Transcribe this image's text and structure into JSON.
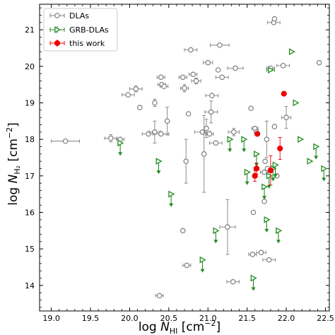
{
  "chart_data": {
    "type": "scatter",
    "xlabel": {
      "base": "log ",
      "italic": "N",
      "sub": "HI",
      "unit": " [cm",
      "sup": "−2",
      "close": "]"
    },
    "ylabel": {
      "base": "log ",
      "italic": "N",
      "sub": "H₂",
      "unit": " [cm",
      "sup": "−2",
      "close": "]"
    },
    "xlim": [
      18.85,
      22.55
    ],
    "ylim": [
      13.3,
      21.7
    ],
    "xticks": [
      "19.0",
      "19.5",
      "20.0",
      "20.5",
      "21.0",
      "21.5",
      "22.0",
      "22.5"
    ],
    "yticks": [
      "14",
      "15",
      "16",
      "17",
      "18",
      "19",
      "20",
      "21"
    ],
    "grid": false,
    "legend": {
      "placement": "top-left",
      "entries": [
        "DLAs",
        "GRB-DLAs",
        "this work"
      ]
    },
    "colors": {
      "dlas": "#7f7f7f",
      "grb": "#228b22",
      "this_work": "#ee0000"
    },
    "series": [
      {
        "name": "DLAs",
        "marker": "open-circle",
        "points": [
          {
            "x": 19.18,
            "y": 17.95,
            "xerr": 0.18
          },
          {
            "x": 19.76,
            "y": 18.03,
            "xerr": 0.08,
            "yerr": 0.1
          },
          {
            "x": 19.88,
            "y": 18.0,
            "xerr": 0.05
          },
          {
            "x": 19.98,
            "y": 19.22,
            "xerr": 0.08
          },
          {
            "x": 20.08,
            "y": 19.38,
            "xerr": 0.08,
            "yerr": 0.08
          },
          {
            "x": 20.13,
            "y": 18.87
          },
          {
            "x": 20.24,
            "y": 18.15,
            "xerr": 0.08
          },
          {
            "x": 20.32,
            "y": 18.2,
            "xerr": 0.07,
            "yerr": 0.3
          },
          {
            "x": 20.32,
            "y": 19.0,
            "yerr": 0.1
          },
          {
            "x": 20.38,
            "y": 13.72,
            "xerr": 0.05
          },
          {
            "x": 20.4,
            "y": 18.15,
            "xerr": 0.1
          },
          {
            "x": 20.4,
            "y": 19.7,
            "xerr": 0.05
          },
          {
            "x": 20.41,
            "y": 19.5,
            "xerr": 0.05
          },
          {
            "x": 20.44,
            "y": 19.45,
            "xerr": 0.05
          },
          {
            "x": 20.48,
            "y": 18.5,
            "yerr": 0.38
          },
          {
            "x": 20.68,
            "y": 15.5
          },
          {
            "x": 20.68,
            "y": 19.7,
            "xerr": 0.05
          },
          {
            "x": 20.7,
            "y": 19.4,
            "xerr": 0.05,
            "yerr": 0.1
          },
          {
            "x": 20.72,
            "y": 17.4,
            "yerr": 0.6
          },
          {
            "x": 20.73,
            "y": 14.55,
            "xerr": 0.05
          },
          {
            "x": 20.75,
            "y": 18.7
          },
          {
            "x": 20.78,
            "y": 20.45,
            "xerr": 0.08
          },
          {
            "x": 20.81,
            "y": 19.78,
            "xerr": 0.05
          },
          {
            "x": 20.85,
            "y": 19.6,
            "xerr": 0.06,
            "yerr": 0.08
          },
          {
            "x": 20.93,
            "y": 18.2,
            "xerr": 0.1
          },
          {
            "x": 20.95,
            "y": 17.6,
            "yerr": 1.05
          },
          {
            "x": 20.98,
            "y": 18.3,
            "yerr": 0.25
          },
          {
            "x": 21.0,
            "y": 20.1,
            "xerr": 0.06
          },
          {
            "x": 21.02,
            "y": 18.15,
            "xerr": 0.05
          },
          {
            "x": 21.04,
            "y": 18.75,
            "xerr": 0.08,
            "yerr": 0.3
          },
          {
            "x": 21.05,
            "y": 19.2,
            "xerr": 0.08
          },
          {
            "x": 21.1,
            "y": 17.9,
            "xerr": 0.08
          },
          {
            "x": 21.13,
            "y": 19.9
          },
          {
            "x": 21.15,
            "y": 20.58,
            "xerr": 0.12
          },
          {
            "x": 21.18,
            "y": 19.7,
            "xerr": 0.08
          },
          {
            "x": 21.25,
            "y": 15.6,
            "xerr": 0.1,
            "yerr": 0.75
          },
          {
            "x": 21.32,
            "y": 14.1,
            "xerr": 0.08
          },
          {
            "x": 21.33,
            "y": 18.2,
            "xerr": 0.07,
            "yerr": 0.1
          },
          {
            "x": 21.35,
            "y": 19.95,
            "xerr": 0.1
          },
          {
            "x": 21.55,
            "y": 18.85
          },
          {
            "x": 21.57,
            "y": 14.85,
            "xerr": 0.05
          },
          {
            "x": 21.58,
            "y": 16.0
          },
          {
            "x": 21.6,
            "y": 18.3,
            "xerr": 0.04
          },
          {
            "x": 21.62,
            "y": 18.2
          },
          {
            "x": 21.68,
            "y": 14.9,
            "xerr": 0.06
          },
          {
            "x": 21.72,
            "y": 16.3
          },
          {
            "x": 21.72,
            "y": 17.1,
            "xerr": 0.05
          },
          {
            "x": 21.73,
            "y": 17.4
          },
          {
            "x": 21.75,
            "y": 18.0,
            "yerr": 0.5
          },
          {
            "x": 21.76,
            "y": 17.2
          },
          {
            "x": 21.78,
            "y": 14.7,
            "xerr": 0.08
          },
          {
            "x": 21.8,
            "y": 17.15
          },
          {
            "x": 21.8,
            "y": 19.95,
            "xerr": 0.05
          },
          {
            "x": 21.84,
            "y": 21.2,
            "xerr": 0.08
          },
          {
            "x": 21.85,
            "y": 21.3
          },
          {
            "x": 21.85,
            "y": 18.35
          },
          {
            "x": 21.88,
            "y": 17.0
          },
          {
            "x": 21.96,
            "y": 20.02,
            "xerr": 0.08
          },
          {
            "x": 22.0,
            "y": 18.6,
            "xerr": 0.06,
            "yerr": 0.3
          },
          {
            "x": 22.42,
            "y": 20.1
          }
        ]
      },
      {
        "name": "GRB-DLAs",
        "marker": "open-triangle-right",
        "points": [
          {
            "x": 19.88,
            "y": 17.9,
            "upper": true
          },
          {
            "x": 20.37,
            "y": 17.4,
            "upper": true
          },
          {
            "x": 20.53,
            "y": 16.5,
            "upper": true
          },
          {
            "x": 20.93,
            "y": 14.7,
            "upper": true
          },
          {
            "x": 21.1,
            "y": 15.5,
            "upper": true
          },
          {
            "x": 21.28,
            "y": 18.0,
            "upper": true
          },
          {
            "x": 21.46,
            "y": 18.0,
            "upper": true
          },
          {
            "x": 21.5,
            "y": 17.1,
            "upper": true
          },
          {
            "x": 21.58,
            "y": 14.2,
            "upper": true
          },
          {
            "x": 21.62,
            "y": 17.6,
            "upper": true
          },
          {
            "x": 21.72,
            "y": 16.7,
            "upper": true
          },
          {
            "x": 21.75,
            "y": 15.8,
            "upper": true
          },
          {
            "x": 21.78,
            "y": 17.0,
            "upper": true
          },
          {
            "x": 21.8,
            "y": 19.9,
            "xerr": 0.05
          },
          {
            "x": 21.83,
            "y": 17.2,
            "upper": true
          },
          {
            "x": 21.86,
            "y": 17.3,
            "upper": true
          },
          {
            "x": 21.9,
            "y": 15.5,
            "upper": true
          },
          {
            "x": 22.07,
            "y": 20.4
          },
          {
            "x": 22.12,
            "y": 19.0
          },
          {
            "x": 22.18,
            "y": 18.0
          },
          {
            "x": 22.3,
            "y": 17.4
          },
          {
            "x": 22.38,
            "y": 17.8,
            "upper": true
          },
          {
            "x": 22.48,
            "y": 17.2,
            "upper": true
          }
        ]
      },
      {
        "name": "this work",
        "marker": "filled-circle",
        "points": [
          {
            "x": 21.6,
            "y": 17.0,
            "xerr": 0.03,
            "yerr": 0.15
          },
          {
            "x": 21.62,
            "y": 17.2,
            "xerr": 0.03,
            "yerr": 0.15
          },
          {
            "x": 21.63,
            "y": 18.15
          },
          {
            "x": 21.8,
            "y": 17.15,
            "xerr": 0.03,
            "yerr": 0.4
          },
          {
            "x": 21.92,
            "y": 17.75,
            "yerr": 0.3
          },
          {
            "x": 21.97,
            "y": 19.25
          }
        ]
      }
    ]
  }
}
